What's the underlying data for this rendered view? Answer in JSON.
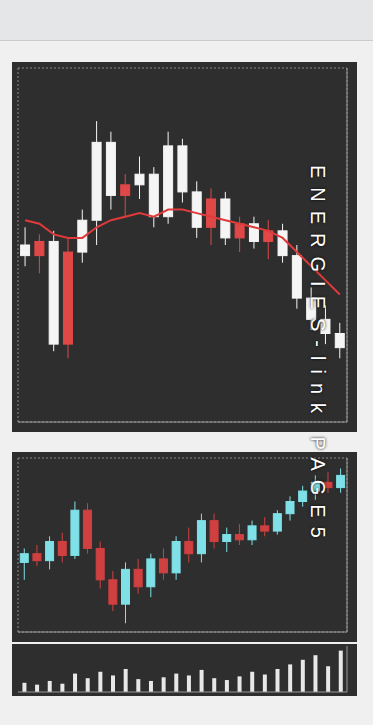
{
  "overlay_text": "ENERGIES-link PAGE5",
  "chart_data": [
    {
      "type": "candlestick",
      "grid": true,
      "tick_labels": false,
      "ylim": [
        1.27,
        1.28
      ],
      "yticks": [
        1.27,
        1.271,
        1.272,
        1.273,
        1.274,
        1.275,
        1.276,
        1.277,
        1.278,
        1.279,
        1.28
      ],
      "candles": {
        "open": [
          1.275,
          1.2747,
          1.2751,
          1.2722,
          1.2748,
          1.2757,
          1.2779,
          1.2764,
          1.2767,
          1.277,
          1.2758,
          1.2778,
          1.2765,
          1.2755,
          1.2763,
          1.2752,
          1.2756,
          1.2751,
          1.2754,
          1.2747,
          1.2735,
          1.2729,
          1.2725
        ],
        "high": [
          1.2755,
          1.2753,
          1.2754,
          1.2752,
          1.276,
          1.2785,
          1.2782,
          1.277,
          1.2775,
          1.2772,
          1.2782,
          1.278,
          1.2768,
          1.2766,
          1.2765,
          1.2758,
          1.2758,
          1.2757,
          1.2756,
          1.275,
          1.2738,
          1.2733,
          1.2728
        ],
        "low": [
          1.2744,
          1.2742,
          1.272,
          1.2718,
          1.2745,
          1.275,
          1.276,
          1.2758,
          1.2763,
          1.2755,
          1.2756,
          1.2762,
          1.2752,
          1.275,
          1.275,
          1.2748,
          1.2749,
          1.2746,
          1.2745,
          1.2732,
          1.2726,
          1.2722,
          1.2718
        ],
        "close": [
          1.2747,
          1.2751,
          1.2722,
          1.2748,
          1.2757,
          1.2779,
          1.2764,
          1.2767,
          1.277,
          1.2758,
          1.2778,
          1.2765,
          1.2755,
          1.2763,
          1.2752,
          1.2756,
          1.2751,
          1.2754,
          1.2747,
          1.2735,
          1.2729,
          1.2725,
          1.2721
        ],
        "colors": [
          "#f5f5f5",
          "#e04848",
          "#f5f5f5",
          "#e04848",
          "#f5f5f5",
          "#f5f5f5",
          "#f5f5f5",
          "#e04848",
          "#f5f5f5",
          "#f5f5f5",
          "#f5f5f5",
          "#f5f5f5",
          "#f5f5f5",
          "#e04848",
          "#f5f5f5",
          "#e04848",
          "#f5f5f5",
          "#e04848",
          "#f5f5f5",
          "#f5f5f5",
          "#f5f5f5",
          "#f5f5f5",
          "#f5f5f5"
        ]
      },
      "series": [
        {
          "type": "line",
          "color": "#e03a3a",
          "values": [
            1.2757,
            1.2756,
            1.2753,
            1.2752,
            1.2752,
            1.2755,
            1.2757,
            1.2758,
            1.2759,
            1.2758,
            1.276,
            1.276,
            1.2759,
            1.2758,
            1.2757,
            1.2756,
            1.2755,
            1.2754,
            1.2752,
            1.2748,
            1.2744,
            1.274,
            1.2736
          ]
        }
      ]
    },
    {
      "type": "candlestick",
      "grid": true,
      "tick_labels": false,
      "ylim": [
        1.56,
        1.57
      ],
      "yticks": [
        1.56,
        1.561,
        1.562,
        1.563,
        1.564,
        1.565,
        1.566,
        1.567,
        1.568,
        1.569,
        1.57
      ],
      "candles": {
        "open": [
          1.564,
          1.5645,
          1.5641,
          1.5652,
          1.5644,
          1.567,
          1.5648,
          1.563,
          1.5616,
          1.5636,
          1.5626,
          1.5642,
          1.5634,
          1.5652,
          1.5645,
          1.5664,
          1.5652,
          1.5656,
          1.5653,
          1.5661,
          1.5658,
          1.5668,
          1.5675,
          1.5681,
          1.5686,
          1.5683
        ],
        "high": [
          1.5648,
          1.565,
          1.5655,
          1.5657,
          1.5675,
          1.5674,
          1.5652,
          1.5635,
          1.564,
          1.5642,
          1.5645,
          1.5648,
          1.5655,
          1.566,
          1.5668,
          1.5668,
          1.566,
          1.5662,
          1.5664,
          1.5666,
          1.567,
          1.5678,
          1.5684,
          1.569,
          1.5692,
          1.5694
        ],
        "low": [
          1.563,
          1.5638,
          1.5636,
          1.564,
          1.5642,
          1.5645,
          1.5625,
          1.5612,
          1.5605,
          1.5622,
          1.562,
          1.563,
          1.563,
          1.564,
          1.564,
          1.5648,
          1.5646,
          1.565,
          1.565,
          1.5655,
          1.5656,
          1.5664,
          1.5672,
          1.5676,
          1.568,
          1.568
        ],
        "close": [
          1.5645,
          1.5641,
          1.5652,
          1.5644,
          1.567,
          1.5648,
          1.563,
          1.5616,
          1.5636,
          1.5626,
          1.5642,
          1.5634,
          1.5652,
          1.5645,
          1.5664,
          1.5652,
          1.5656,
          1.5653,
          1.5661,
          1.5658,
          1.5668,
          1.5675,
          1.5681,
          1.5686,
          1.5683,
          1.569
        ],
        "colors": [
          "#7fe0e8",
          "#d04040",
          "#7fe0e8",
          "#d04040",
          "#7fe0e8",
          "#d04040",
          "#d04040",
          "#d04040",
          "#7fe0e8",
          "#d04040",
          "#7fe0e8",
          "#d04040",
          "#7fe0e8",
          "#d04040",
          "#7fe0e8",
          "#d04040",
          "#7fe0e8",
          "#d04040",
          "#7fe0e8",
          "#d04040",
          "#7fe0e8",
          "#7fe0e8",
          "#7fe0e8",
          "#7fe0e8",
          "#d04040",
          "#7fe0e8"
        ]
      },
      "series": []
    },
    {
      "type": "bar",
      "grid": false,
      "tick_labels": false,
      "color": "#e8e8e8",
      "ylim": [
        0,
        50
      ],
      "yticks": [
        0,
        50
      ],
      "values": [
        10,
        8,
        12,
        9,
        20,
        15,
        22,
        18,
        25,
        14,
        12,
        16,
        20,
        18,
        24,
        15,
        13,
        17,
        22,
        19,
        25,
        30,
        35,
        40,
        28,
        45
      ]
    }
  ]
}
